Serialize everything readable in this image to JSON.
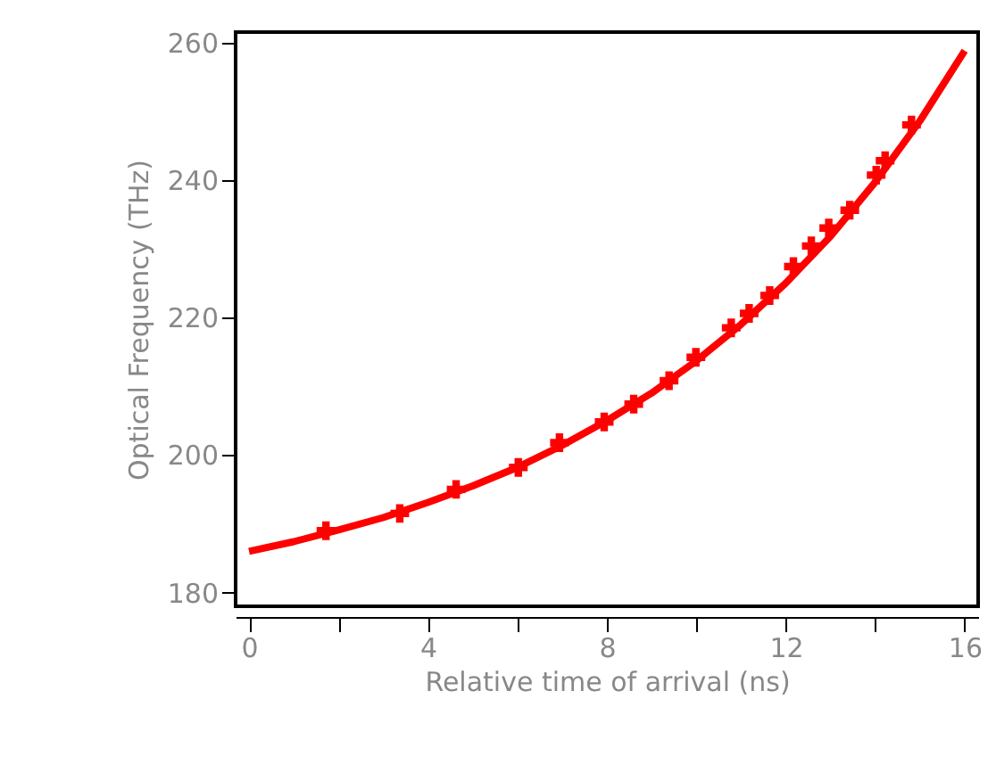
{
  "chart_data": {
    "type": "scatter",
    "xlabel": "Relative time of arrival (ns)",
    "ylabel": "Optical Frequency (THz)",
    "xlim": [
      -0.3,
      16.3
    ],
    "ylim": [
      178,
      261.5
    ],
    "xticks": [
      0,
      {
        "value": 2,
        "label": null
      },
      4,
      {
        "value": 6,
        "label": null
      },
      8,
      {
        "value": 10,
        "label": null
      },
      12,
      {
        "value": 14,
        "label": null
      },
      16
    ],
    "yticks": [
      180,
      200,
      220,
      240,
      260
    ],
    "grid": false,
    "series": [
      {
        "color": "#ff0000",
        "marker": "cross",
        "x": [
          1.72,
          3.37,
          4.63,
          6.02,
          6.94,
          7.94,
          8.6,
          9.39,
          9.99,
          10.78,
          11.18,
          11.64,
          12.17,
          12.57,
          12.96,
          13.43,
          14.02,
          14.22,
          14.81
        ],
        "values": [
          189,
          191.5,
          195,
          198.2,
          201.8,
          204.8,
          207.4,
          210.8,
          214.2,
          218.5,
          220.6,
          223.2,
          227.4,
          230.4,
          233,
          235.6,
          240.7,
          242.8,
          248
        ]
      },
      {
        "type": "line",
        "color": "#ff0000",
        "line_style": "solid",
        "x": [
          0,
          1,
          2,
          3,
          4,
          5,
          6,
          7,
          8,
          9,
          10,
          11,
          12,
          13,
          14,
          15,
          16
        ],
        "values": [
          186,
          187.4,
          189.1,
          190.9,
          193.1,
          195.5,
          198.2,
          201.4,
          205,
          209,
          213.7,
          219,
          225,
          231.8,
          239.7,
          248.6,
          258.8
        ]
      }
    ]
  }
}
